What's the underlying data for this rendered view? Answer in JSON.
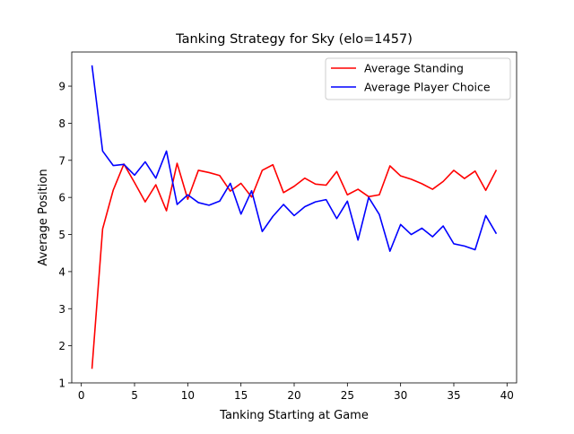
{
  "chart_data": {
    "type": "line",
    "title": "Tanking Strategy for Sky (elo=1457)",
    "xlabel": "Tanking Starting at Game",
    "ylabel": "Average Position",
    "xlim": [
      -0.9,
      40.9
    ],
    "ylim": [
      1,
      9.92
    ],
    "xticks": [
      0,
      5,
      10,
      15,
      20,
      25,
      30,
      35,
      40
    ],
    "yticks": [
      1,
      2,
      3,
      4,
      5,
      6,
      7,
      8,
      9
    ],
    "grid": false,
    "legend_position": "top-right",
    "x": [
      1,
      2,
      3,
      4,
      5,
      6,
      7,
      8,
      9,
      10,
      11,
      12,
      13,
      14,
      15,
      16,
      17,
      18,
      19,
      20,
      21,
      22,
      23,
      24,
      25,
      26,
      27,
      28,
      29,
      30,
      31,
      32,
      33,
      34,
      35,
      36,
      37,
      38,
      39
    ],
    "series": [
      {
        "name": "Average Standing",
        "color": "#ff0000",
        "values": [
          1.38,
          5.15,
          6.2,
          6.9,
          6.4,
          5.88,
          6.34,
          5.64,
          6.92,
          5.95,
          6.73,
          6.67,
          6.59,
          6.17,
          6.38,
          6.01,
          6.73,
          6.88,
          6.13,
          6.3,
          6.52,
          6.36,
          6.33,
          6.7,
          6.07,
          6.22,
          6.02,
          6.07,
          6.85,
          6.58,
          6.49,
          6.37,
          6.22,
          6.43,
          6.73,
          6.51,
          6.71,
          6.19,
          6.74
        ]
      },
      {
        "name": "Average Player Choice",
        "color": "#0000ff",
        "values": [
          9.56,
          7.25,
          6.86,
          6.89,
          6.6,
          6.96,
          6.52,
          7.25,
          5.81,
          6.07,
          5.86,
          5.79,
          5.9,
          6.38,
          5.55,
          6.18,
          5.08,
          5.49,
          5.81,
          5.51,
          5.75,
          5.88,
          5.94,
          5.43,
          5.9,
          4.85,
          6.0,
          5.54,
          4.55,
          5.27,
          5.0,
          5.17,
          4.94,
          5.23,
          4.75,
          4.69,
          4.59,
          5.51,
          5.02
        ]
      }
    ]
  }
}
